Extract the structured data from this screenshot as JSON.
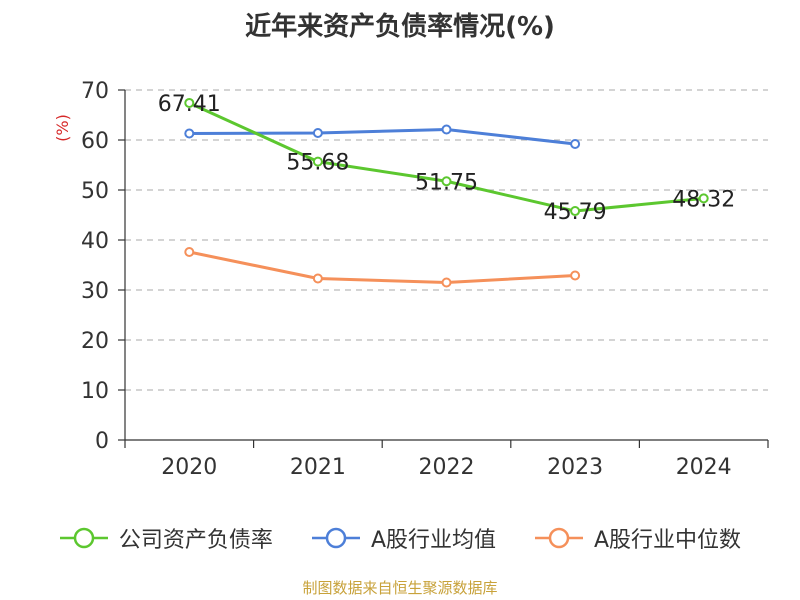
{
  "title": "近年来资产负债率情况(%)",
  "source": "制图数据来自恒生聚源数据库",
  "chart_data": {
    "type": "line",
    "title": "近年来资产负债率情况(%)",
    "xlabel": "",
    "ylabel": "(%)",
    "ylim": [
      0,
      70
    ],
    "yticks": [
      0,
      10,
      20,
      30,
      40,
      50,
      60,
      70
    ],
    "categories": [
      "2020",
      "2021",
      "2022",
      "2023",
      "2024"
    ],
    "grid": true,
    "legend": "bottom",
    "series": [
      {
        "name": "公司资产负债率",
        "color": "#5cc72f",
        "values": [
          67.41,
          55.68,
          51.75,
          45.79,
          48.32
        ],
        "show_labels": true
      },
      {
        "name": "A股行业均值",
        "color": "#4d7fd8",
        "values": [
          61.3,
          61.4,
          62.1,
          59.2,
          null
        ],
        "show_labels": false
      },
      {
        "name": "A股行业中位数",
        "color": "#f5905a",
        "values": [
          37.6,
          32.3,
          31.5,
          32.9,
          null
        ],
        "show_labels": false
      }
    ]
  }
}
